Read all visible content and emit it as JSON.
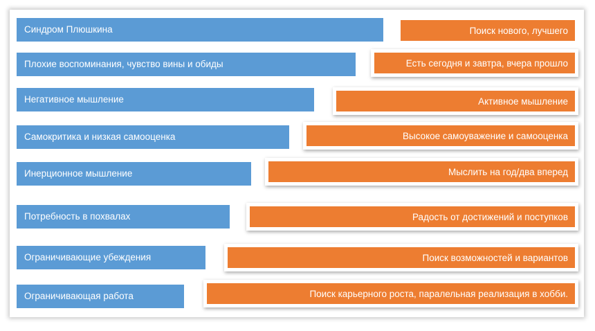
{
  "rows": [
    {
      "left": "Синдром Плюшкина",
      "right": "Поиск нового, лучшего"
    },
    {
      "left": "Плохие воспоминания, чувство вины и обиды",
      "right": "Есть сегодня и завтра, вчера прошло"
    },
    {
      "left": "Негативное мышление",
      "right": "Активное мышление"
    },
    {
      "left": "Самокритика и низкая самооценка",
      "right": "Высокое самоуважение и самооценка"
    },
    {
      "left": "Инерционное мышление",
      "right": "Мыслить на год/два вперед"
    },
    {
      "left": "Потребность в похвалах",
      "right": "Радость от достижений и поступков"
    },
    {
      "left": "Ограничивающие убеждения",
      "right": "Поиск возможностей и вариантов"
    },
    {
      "left": "Ограничивающая работа",
      "right": "Поиск карьерного роста, паралельная реализация в хобби."
    }
  ],
  "colors": {
    "left": "#5b9bd5",
    "right": "#ed7d31"
  }
}
